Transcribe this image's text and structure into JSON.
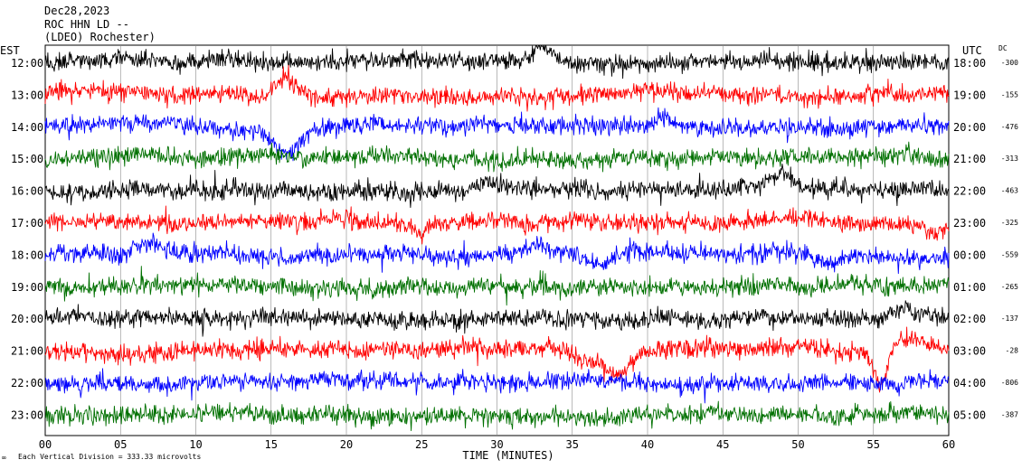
{
  "header": {
    "date": "Dec28,2023",
    "station_line": "ROC HHN LD --",
    "network_line": "(LDEO) Rochester)"
  },
  "left_axis_label": "EST",
  "right_axis_label": "UTC",
  "dc_label": "DC",
  "x_axis_title": "TIME (MINUTES)",
  "footer_note": "Each Vertical Division =  333.33 microvolts",
  "colors": {
    "trace_cycle": [
      "#000000",
      "#ff0000",
      "#0000ff",
      "#007000"
    ],
    "grid": "#000000",
    "background": "#ffffff"
  },
  "chart_data": {
    "type": "line",
    "subtype": "helicorder",
    "x_range_minutes": [
      0,
      60
    ],
    "x_ticks": [
      "00",
      "05",
      "10",
      "15",
      "20",
      "25",
      "30",
      "35",
      "40",
      "45",
      "50",
      "55",
      "60"
    ],
    "grid": true,
    "rows": [
      {
        "est": "12:00",
        "utc": "18:00",
        "dc": "-300",
        "color": "#000000",
        "events": [
          {
            "minute": 33.0,
            "amp": 0.9,
            "dur": 1.2
          }
        ]
      },
      {
        "est": "13:00",
        "utc": "19:00",
        "dc": "-155",
        "color": "#ff0000",
        "events": [
          {
            "minute": 16.0,
            "amp": 0.8,
            "dur": 1.0
          }
        ]
      },
      {
        "est": "14:00",
        "utc": "20:00",
        "dc": "-476",
        "color": "#0000ff",
        "events": [
          {
            "minute": 16.0,
            "amp": -1.4,
            "dur": 1.8
          },
          {
            "minute": 41.0,
            "amp": 0.5,
            "dur": 0.8
          }
        ]
      },
      {
        "est": "15:00",
        "utc": "21:00",
        "dc": "-313",
        "color": "#007000",
        "events": []
      },
      {
        "est": "16:00",
        "utc": "22:00",
        "dc": "-463",
        "color": "#000000",
        "events": [
          {
            "minute": 29.5,
            "amp": 0.5,
            "dur": 1.5
          },
          {
            "minute": 49.0,
            "amp": 0.7,
            "dur": 1.5
          }
        ]
      },
      {
        "est": "17:00",
        "utc": "23:00",
        "dc": "-325",
        "color": "#ff0000",
        "events": [
          {
            "minute": 25.0,
            "amp": -0.5,
            "dur": 1.0
          },
          {
            "minute": 59.0,
            "amp": -0.5,
            "dur": 1.0
          }
        ]
      },
      {
        "est": "18:00",
        "utc": "00:00",
        "dc": "-559",
        "color": "#0000ff",
        "events": [
          {
            "minute": 7.0,
            "amp": 0.5,
            "dur": 2.0
          },
          {
            "minute": 33.0,
            "amp": 0.6,
            "dur": 2.0
          },
          {
            "minute": 37.0,
            "amp": -0.5,
            "dur": 1.5
          },
          {
            "minute": 52.0,
            "amp": -0.5,
            "dur": 1.5
          }
        ]
      },
      {
        "est": "19:00",
        "utc": "01:00",
        "dc": "-265",
        "color": "#007000",
        "events": []
      },
      {
        "est": "20:00",
        "utc": "02:00",
        "dc": "-137",
        "color": "#000000",
        "events": [
          {
            "minute": 57.0,
            "amp": 0.5,
            "dur": 1.5
          }
        ]
      },
      {
        "est": "21:00",
        "utc": "03:00",
        "dc": "-28",
        "color": "#ff0000",
        "events": [
          {
            "minute": 36.0,
            "amp": -0.6,
            "dur": 1.5
          },
          {
            "minute": 38.0,
            "amp": -1.3,
            "dur": 1.5
          },
          {
            "minute": 55.5,
            "amp": -1.8,
            "dur": 0.9
          },
          {
            "minute": 57.5,
            "amp": 0.7,
            "dur": 2.5
          }
        ]
      },
      {
        "est": "22:00",
        "utc": "04:00",
        "dc": "-806",
        "color": "#0000ff",
        "events": []
      },
      {
        "est": "23:00",
        "utc": "05:00",
        "dc": "-387",
        "color": "#007000",
        "events": []
      }
    ]
  }
}
